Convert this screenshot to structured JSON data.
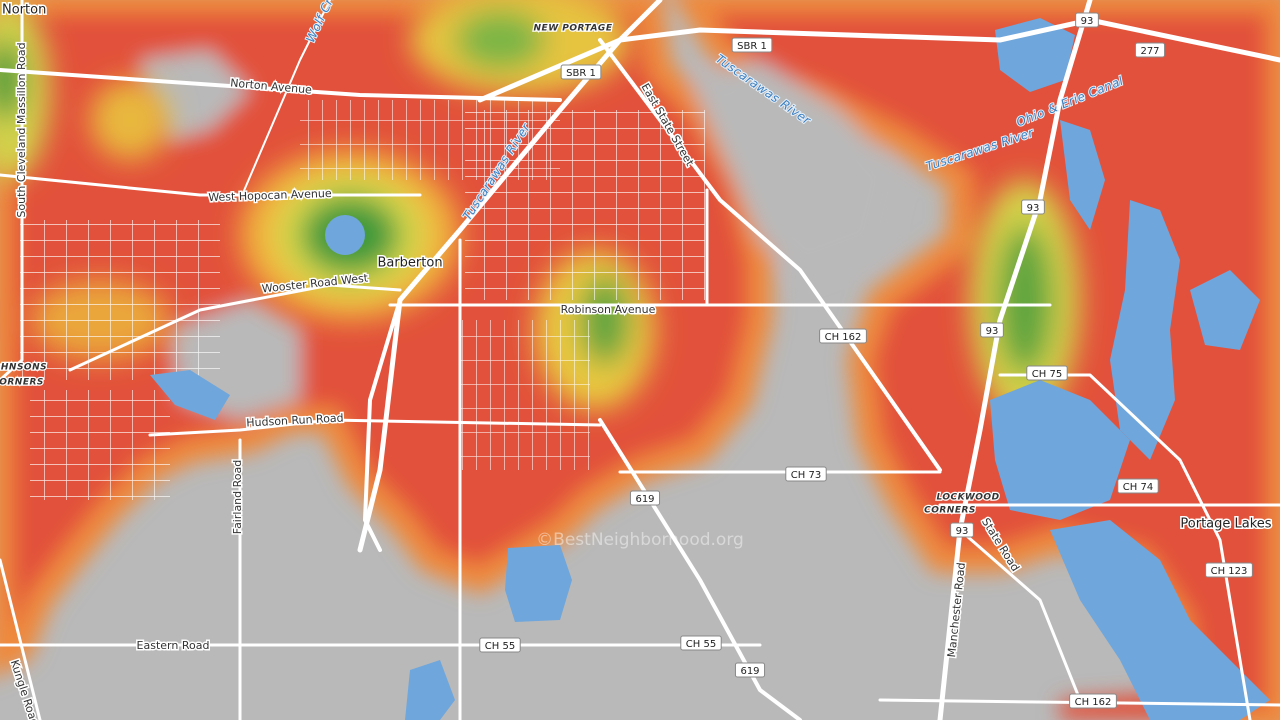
{
  "place_labels": [
    "Norton",
    "Barberton",
    "Portage Lakes",
    "NEW PORTAGE",
    "JOHNSONS",
    "CORNERS",
    "LOCKWOOD",
    "CORNERS"
  ],
  "road_labels": [
    "Norton Avenue",
    "West Hopocan Avenue",
    "Wooster Road West",
    "Robinson Avenue",
    "Hudson Run Road",
    "Eastern Road",
    "Fairland Road",
    "Manchester Road",
    "State Road",
    "East State Street",
    "South Cleveland Massillon Road",
    "Kungle Road"
  ],
  "water_labels": [
    "Wolf Creek",
    "Tuscarawas River",
    "Tuscarawas River",
    "Tuscarawas River",
    "Ohio & Erie Canal"
  ],
  "route_shields": [
    "SBR 1",
    "SBR 1",
    "93",
    "93",
    "93",
    "93",
    "277",
    "CH 162",
    "CH 162",
    "CH 75",
    "CH 73",
    "619",
    "619",
    "CH 74",
    "CH 123",
    "CH 55",
    "CH 55"
  ],
  "watermark": "©BestNeighborhood.org"
}
